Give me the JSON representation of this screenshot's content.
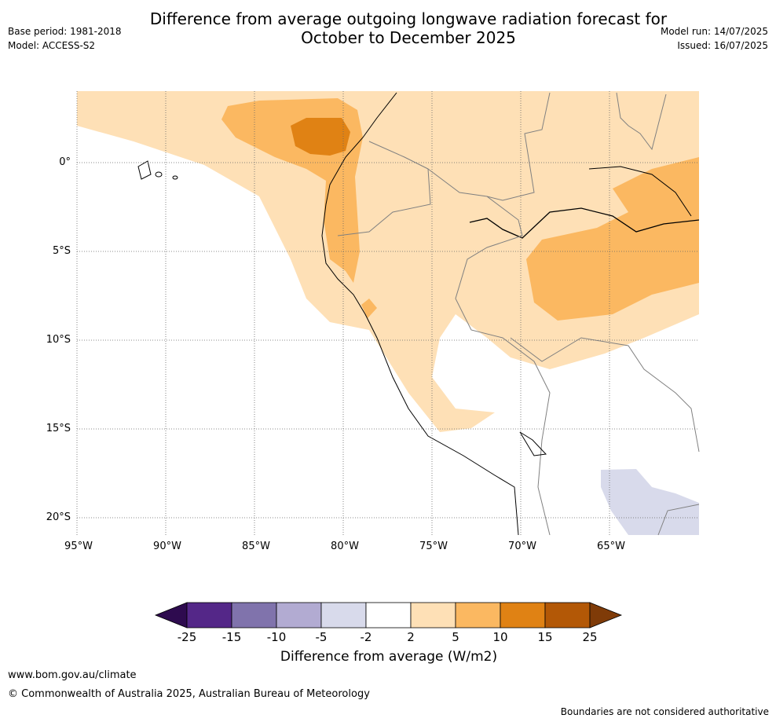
{
  "header": {
    "title": "Difference from average outgoing longwave radiation forecast for\nOctober to December 2025",
    "base_period": "Base period: 1981-2018",
    "model": "Model: ACCESS-S2",
    "model_run": "Model run: 14/07/2025",
    "issued": "Issued: 16/07/2025"
  },
  "map": {
    "lat_labels": [
      "0°",
      "5°S",
      "10°S",
      "15°S",
      "20°S"
    ],
    "lon_labels": [
      "95°W",
      "90°W",
      "85°W",
      "80°W",
      "75°W",
      "70°W",
      "65°W"
    ]
  },
  "legend": {
    "title": "Difference from average (W/m2)",
    "ticks": [
      "-25",
      "-15",
      "-10",
      "-5",
      "-2",
      "2",
      "5",
      "10",
      "15",
      "25"
    ],
    "colors": {
      "below_min": "#2e0b4f",
      "m25_m15": "#542788",
      "m15_m10": "#8073ac",
      "m10_m5": "#b2abd2",
      "m5_m2": "#d8daeb",
      "m2_2": "#ffffff",
      "p2_5": "#fee0b6",
      "p5_10": "#fbb861",
      "p10_15": "#e08214",
      "p15_25": "#b35806",
      "above_max": "#7f3b08"
    }
  },
  "footer": {
    "website": "www.bom.gov.au/climate",
    "copyright": "© Commonwealth of Australia 2025, Australian Bureau of Meteorology",
    "disclaimer": "Boundaries are not considered authoritative"
  }
}
